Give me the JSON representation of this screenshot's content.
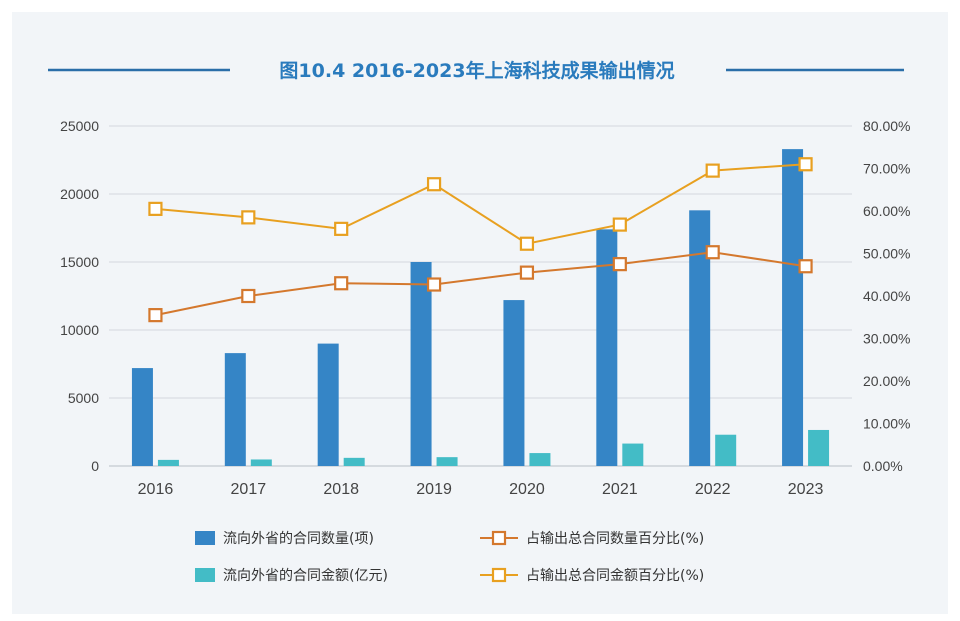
{
  "chart_data": {
    "type": "bar",
    "title": "图10.4 2016-2023年上海科技成果输出情况",
    "categories": [
      "2016",
      "2017",
      "2018",
      "2019",
      "2020",
      "2021",
      "2022",
      "2023"
    ],
    "series": [
      {
        "name": "流向外省的合同数量(项)",
        "kind": "bar",
        "axis": "left",
        "color": "#3585c6",
        "values": [
          7200,
          8300,
          9000,
          15000,
          12200,
          17400,
          18800,
          23300
        ]
      },
      {
        "name": "流向外省的合同金额(亿元)",
        "kind": "bar",
        "axis": "left",
        "color": "#43bcc6",
        "values": [
          450,
          480,
          600,
          650,
          950,
          1650,
          2300,
          2650
        ]
      },
      {
        "name": "占输出总合同数量百分比(%)",
        "kind": "line",
        "axis": "right",
        "color": "#d4782d",
        "values": [
          35.5,
          40.0,
          43.0,
          42.7,
          45.5,
          47.5,
          50.3,
          47.0
        ]
      },
      {
        "name": "占输出总合同金额百分比(%)",
        "kind": "line",
        "axis": "right",
        "color": "#e8a020",
        "values": [
          60.5,
          58.5,
          55.8,
          66.3,
          52.3,
          56.8,
          69.5,
          71.0
        ]
      }
    ],
    "y_left": {
      "min": 0,
      "max": 25000,
      "ticks": [
        "0",
        "5000",
        "10000",
        "15000",
        "20000",
        "25000"
      ]
    },
    "y_right": {
      "min": 0,
      "max": 80,
      "ticks": [
        "0.00%",
        "10.00%",
        "20.00%",
        "30.00%",
        "40.00%",
        "50.00%",
        "60.00%",
        "70.00%",
        "80.00%"
      ]
    },
    "grid": true,
    "legend_position": "bottom"
  }
}
